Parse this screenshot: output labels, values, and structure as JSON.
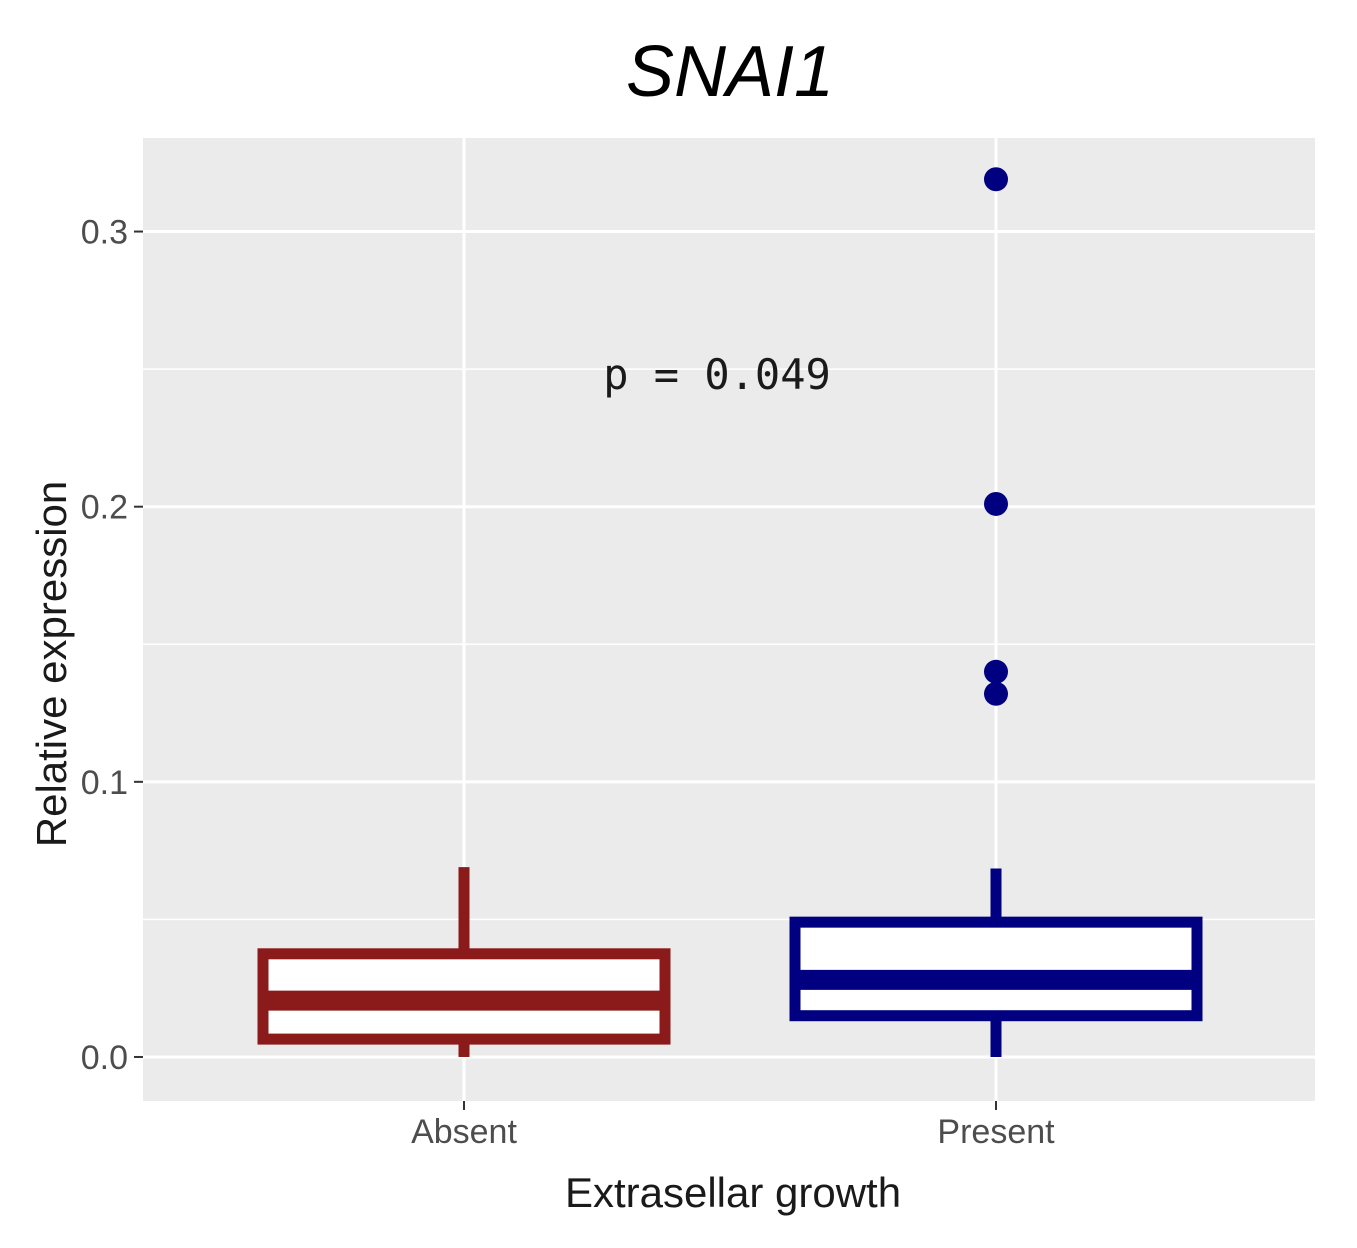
{
  "chart_data": {
    "type": "boxplot",
    "title": "SNAI1",
    "xlabel": "Extrasellar growth",
    "ylabel": "Relative expression",
    "ylim": [
      -0.016,
      0.334
    ],
    "yticks": [
      0.0,
      0.1,
      0.2,
      0.3
    ],
    "ytick_labels": [
      "0.0",
      "0.1",
      "0.2",
      "0.3"
    ],
    "minor_yticks": [
      0.05,
      0.15,
      0.25
    ],
    "grid": true,
    "categories": [
      "Absent",
      "Present"
    ],
    "boxes": [
      {
        "name": "Absent",
        "color": "#8b1a1a",
        "whisker_low": 0.0,
        "q1": 0.0065,
        "median": 0.0205,
        "q3": 0.0375,
        "whisker_high": 0.069,
        "outliers": []
      },
      {
        "name": "Present",
        "color": "#000080",
        "whisker_low": 0.0,
        "q1": 0.015,
        "median": 0.028,
        "q3": 0.049,
        "whisker_high": 0.0685,
        "outliers": [
          0.132,
          0.14,
          0.201,
          0.319
        ]
      }
    ],
    "annotation": {
      "text": "p = 0.049",
      "x_between": [
        1,
        2
      ],
      "y": 0.248
    },
    "panel_color": "#ebebeb",
    "grid_color": "#ffffff"
  }
}
